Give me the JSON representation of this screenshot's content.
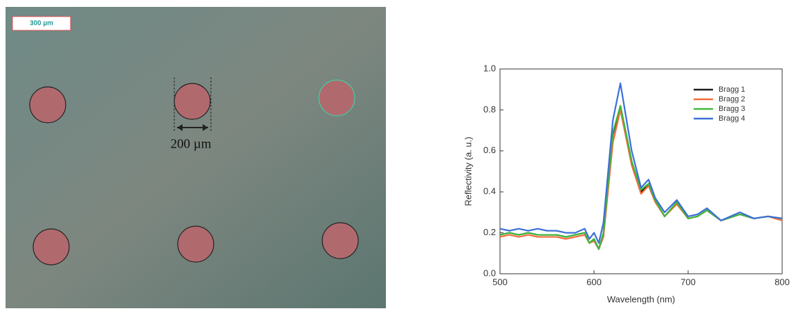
{
  "micrograph": {
    "scale_bar": "300 µm",
    "dimension_label": "200 µm"
  },
  "chart_data": {
    "type": "line",
    "x_label": "Wavelength (nm)",
    "y_label": "Reflectivity (a. u.)",
    "x": [
      500,
      510,
      520,
      530,
      540,
      550,
      560,
      570,
      580,
      590,
      595,
      600,
      605,
      610,
      620,
      628,
      640,
      650,
      658,
      665,
      675,
      688,
      700,
      710,
      720,
      735,
      755,
      770,
      785,
      800
    ],
    "series": [
      {
        "name": "Bragg 1",
        "color": "#1a1a1a",
        "values": [
          0.19,
          0.2,
          0.19,
          0.2,
          0.19,
          0.19,
          0.19,
          0.18,
          0.19,
          0.2,
          0.15,
          0.17,
          0.12,
          0.2,
          0.68,
          0.82,
          0.55,
          0.4,
          0.44,
          0.36,
          0.28,
          0.35,
          0.27,
          0.28,
          0.31,
          0.26,
          0.29,
          0.27,
          0.28,
          0.27
        ]
      },
      {
        "name": "Bragg 2",
        "color": "#f26b3a",
        "values": [
          0.18,
          0.19,
          0.18,
          0.19,
          0.18,
          0.18,
          0.18,
          0.17,
          0.18,
          0.19,
          0.15,
          0.16,
          0.12,
          0.18,
          0.64,
          0.8,
          0.53,
          0.39,
          0.43,
          0.35,
          0.28,
          0.34,
          0.27,
          0.28,
          0.31,
          0.26,
          0.29,
          0.27,
          0.28,
          0.26
        ]
      },
      {
        "name": "Bragg 3",
        "color": "#3cb93c",
        "values": [
          0.19,
          0.2,
          0.19,
          0.2,
          0.19,
          0.19,
          0.19,
          0.18,
          0.19,
          0.2,
          0.15,
          0.17,
          0.12,
          0.2,
          0.69,
          0.82,
          0.55,
          0.41,
          0.44,
          0.36,
          0.28,
          0.35,
          0.27,
          0.28,
          0.31,
          0.26,
          0.29,
          0.27,
          0.28,
          0.27
        ]
      },
      {
        "name": "Bragg 4",
        "color": "#3a6fd8",
        "values": [
          0.22,
          0.21,
          0.22,
          0.21,
          0.22,
          0.21,
          0.21,
          0.2,
          0.2,
          0.22,
          0.17,
          0.2,
          0.15,
          0.25,
          0.75,
          0.93,
          0.6,
          0.42,
          0.46,
          0.37,
          0.3,
          0.36,
          0.28,
          0.29,
          0.32,
          0.26,
          0.3,
          0.27,
          0.28,
          0.27
        ]
      }
    ],
    "xlim": [
      500,
      800
    ],
    "xticks": [
      500,
      600,
      700,
      800
    ],
    "ylim": [
      0,
      1
    ],
    "yticks": [
      {
        "value": 0,
        "label": "0.0"
      },
      0.2,
      0.4,
      0.6,
      0.8,
      {
        "value": 1,
        "label": "1.0"
      }
    ],
    "legend": "upper-right"
  }
}
